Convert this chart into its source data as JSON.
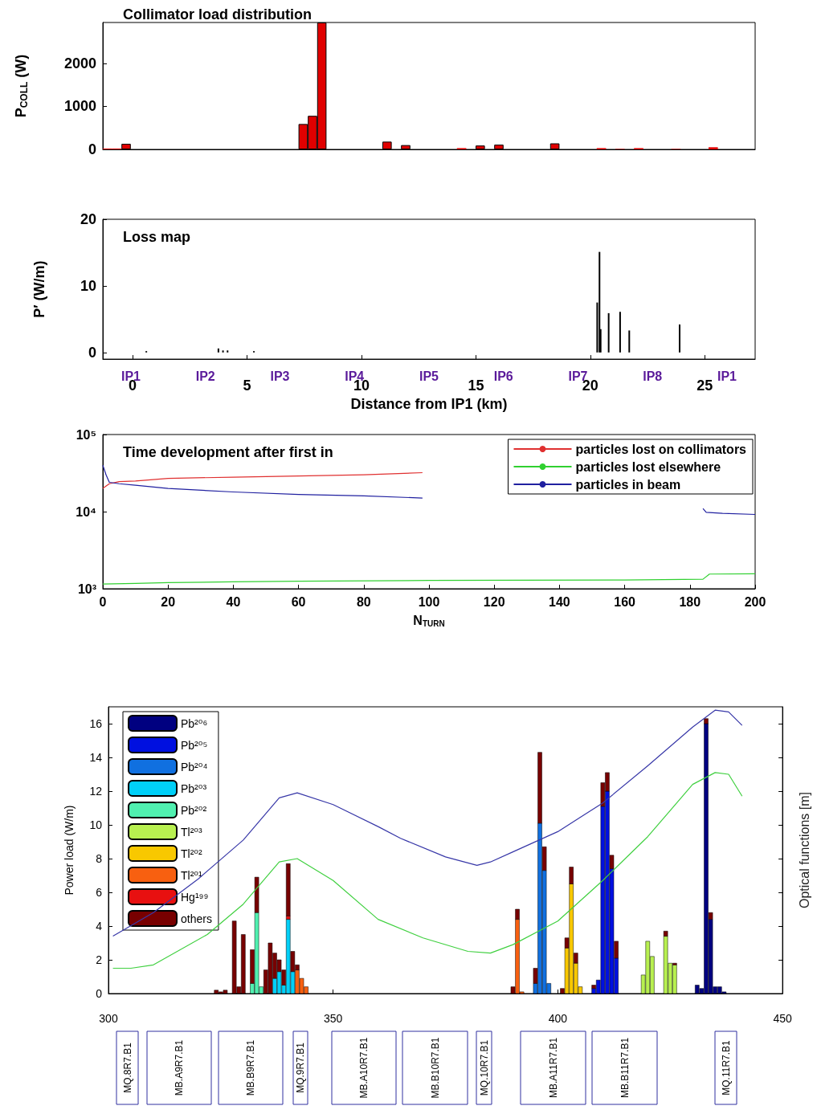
{
  "chart_data": [
    {
      "type": "bar",
      "title": "Collimator load distribution",
      "ylabel": "P$_{COLL}$ (W)",
      "categories": [
        null,
        null,
        null,
        null,
        null,
        null,
        null,
        null,
        null,
        null,
        null,
        null,
        null,
        null,
        null,
        null,
        null,
        null,
        null,
        null,
        null,
        null,
        null,
        null,
        null,
        null,
        null,
        null,
        null,
        null,
        null,
        null,
        null,
        null,
        null,
        null,
        null,
        null,
        null,
        null,
        null,
        null,
        null,
        null,
        null,
        null,
        null,
        null,
        null,
        null,
        null,
        null,
        null,
        null,
        null,
        null,
        null,
        null,
        null,
        null,
        null,
        null,
        null,
        null,
        null,
        null,
        null,
        null,
        null,
        null
      ],
      "values": [
        20,
        20,
        130,
        null,
        null,
        null,
        null,
        null,
        null,
        null,
        null,
        null,
        null,
        null,
        null,
        null,
        null,
        null,
        null,
        null,
        null,
        590,
        780,
        2950,
        null,
        null,
        null,
        null,
        null,
        null,
        180,
        null,
        100,
        null,
        null,
        null,
        null,
        null,
        30,
        null,
        90,
        null,
        110,
        null,
        null,
        null,
        null,
        null,
        140,
        null,
        null,
        null,
        null,
        30,
        null,
        10,
        null,
        30,
        null,
        null,
        null,
        10,
        null,
        null,
        null,
        50,
        null,
        null,
        null,
        null
      ],
      "color": "#e00000",
      "ylim": [
        0,
        2950
      ],
      "yticks": [
        0,
        1000,
        2000
      ]
    },
    {
      "type": "bar",
      "title": "Loss map",
      "ylabel": "P′ (W/m)",
      "xlabel": "Distance from IP1 (km)",
      "x": [
        0.6,
        3.75,
        3.95,
        4.15,
        5.3,
        20.3,
        20.4,
        20.45,
        20.8,
        21.3,
        21.7,
        23.9
      ],
      "values": [
        0.2,
        0.6,
        0.3,
        0.3,
        0.2,
        7.5,
        15.1,
        3.5,
        5.9,
        6.1,
        3.3,
        4.2
      ],
      "color": "#000000",
      "xlim": [
        -1.3,
        27.2
      ],
      "xticks": [
        0,
        5,
        10,
        15,
        20,
        25
      ],
      "ylim": [
        -1,
        20
      ],
      "yticks": [
        0,
        10,
        20
      ],
      "annotations": [
        "IP1",
        "IP2",
        "IP3",
        "IP4",
        "IP5",
        "IP6",
        "IP7",
        "IP8",
        "IP1"
      ]
    },
    {
      "type": "line",
      "title": "Time development after first in",
      "xlabel": "N$_{TURN}$",
      "log": "y",
      "legend": "top right",
      "xlim": [
        0,
        200
      ],
      "xticks": [
        0,
        20,
        40,
        60,
        80,
        100,
        120,
        140,
        160,
        180,
        200
      ],
      "ylim": [
        1000,
        100000
      ],
      "yticks": [
        {
          "value": 1000,
          "label": "10³"
        },
        {
          "value": 10000,
          "label": "10⁴"
        },
        {
          "value": 100000,
          "label": "10⁵"
        }
      ],
      "series": [
        {
          "name": "particles lost on collimators",
          "color": "#e03030",
          "x": [
            0,
            2,
            5,
            10,
            20,
            40,
            60,
            80,
            98
          ],
          "values": [
            20000,
            23000,
            24500,
            25000,
            27000,
            28000,
            29000,
            30000,
            32000
          ]
        },
        {
          "name": "particles lost elsewhere",
          "color": "#30d030",
          "x": [
            0,
            10,
            20,
            40,
            60,
            100,
            160,
            184,
            186,
            200
          ],
          "values": [
            1150,
            1170,
            1200,
            1230,
            1250,
            1280,
            1300,
            1330,
            1550,
            1560
          ]
        },
        {
          "name": "particles in beam",
          "color": "#2020a0",
          "x": [
            0,
            1,
            2,
            5,
            10,
            20,
            40,
            60,
            80,
            98,
            150,
            184,
            185,
            190,
            200
          ],
          "values": [
            40000,
            30000,
            24000,
            23000,
            22000,
            20000,
            18000,
            16700,
            16000,
            15000,
            null,
            11000,
            9800,
            9500,
            9200
          ]
        }
      ]
    },
    {
      "type": "bar",
      "stacked": true,
      "ylabel": "Power load (W/m)",
      "y2label": "Optical functions [m]",
      "legend": "top left",
      "xlim": [
        300,
        450
      ],
      "xticks": [
        300,
        350,
        400,
        450
      ],
      "ylim": [
        0,
        17
      ],
      "yticks": [
        0,
        2,
        4,
        6,
        8,
        10,
        12,
        14,
        16
      ],
      "x": [
        324,
        325,
        326,
        328,
        329,
        330,
        332,
        333,
        334,
        335,
        336,
        337,
        338,
        339,
        340,
        341,
        342,
        343,
        344,
        390,
        391,
        392,
        395,
        396,
        397,
        398,
        401,
        402,
        403,
        404,
        405,
        408,
        409,
        410,
        411,
        412,
        413,
        419,
        420,
        421,
        424,
        425,
        426,
        431,
        432,
        433,
        434,
        435,
        436,
        437
      ],
      "series": [
        {
          "name": "Pb²⁰⁶",
          "color": "#000080",
          "values": [
            null,
            null,
            null,
            null,
            null,
            null,
            null,
            null,
            null,
            null,
            null,
            null,
            null,
            null,
            null,
            null,
            null,
            null,
            null,
            null,
            null,
            null,
            null,
            null,
            null,
            null,
            null,
            null,
            null,
            null,
            null,
            null,
            null,
            null,
            null,
            null,
            null,
            null,
            null,
            null,
            null,
            null,
            null,
            0.5,
            0.3,
            16.0,
            4.4,
            0.4,
            0.4,
            0.1
          ]
        },
        {
          "name": "Pb²⁰⁵",
          "color": "#0010e0",
          "values": [
            null,
            null,
            null,
            null,
            null,
            null,
            null,
            null,
            null,
            null,
            null,
            null,
            null,
            null,
            null,
            null,
            null,
            null,
            null,
            null,
            null,
            null,
            null,
            null,
            null,
            null,
            null,
            null,
            null,
            null,
            null,
            0.3,
            0.8,
            11.1,
            12.0,
            7.4,
            2.1,
            null,
            null,
            null,
            null,
            null,
            null,
            null,
            null,
            null,
            null,
            null,
            null,
            null
          ]
        },
        {
          "name": "Pb²⁰⁴",
          "color": "#1070e0",
          "values": [
            null,
            null,
            null,
            null,
            null,
            null,
            null,
            null,
            null,
            null,
            null,
            null,
            null,
            null,
            null,
            null,
            null,
            null,
            null,
            null,
            null,
            null,
            0.6,
            10.1,
            7.3,
            0.6,
            null,
            null,
            null,
            null,
            null,
            null,
            null,
            null,
            null,
            null,
            null,
            null,
            null,
            null,
            null,
            null,
            null,
            null,
            null,
            null,
            null,
            null,
            null,
            null
          ]
        },
        {
          "name": "Pb²⁰³",
          "color": "#00d0f8",
          "values": [
            null,
            null,
            null,
            null,
            null,
            null,
            null,
            null,
            null,
            null,
            null,
            0.9,
            1.3,
            0.5,
            4.4,
            1.3,
            null,
            null,
            null,
            null,
            null,
            null,
            null,
            null,
            null,
            null,
            null,
            null,
            null,
            null,
            null,
            null,
            null,
            null,
            null,
            null,
            null,
            null,
            null,
            null,
            null,
            null,
            null,
            null,
            null,
            null,
            null,
            null,
            null,
            null
          ]
        },
        {
          "name": "Pb²⁰²",
          "color": "#50f0b0",
          "values": [
            null,
            null,
            null,
            null,
            null,
            null,
            0.6,
            4.8,
            0.4,
            null,
            null,
            null,
            null,
            null,
            null,
            null,
            null,
            null,
            null,
            null,
            null,
            null,
            null,
            null,
            null,
            null,
            null,
            null,
            null,
            null,
            null,
            null,
            null,
            null,
            null,
            null,
            null,
            null,
            null,
            null,
            null,
            null,
            null,
            null,
            null,
            null,
            null,
            null,
            null,
            null
          ]
        },
        {
          "name": "Tl²⁰³",
          "color": "#b8f050",
          "values": [
            null,
            null,
            null,
            null,
            null,
            null,
            null,
            null,
            null,
            null,
            null,
            null,
            null,
            null,
            null,
            null,
            null,
            null,
            null,
            null,
            null,
            null,
            null,
            null,
            null,
            null,
            null,
            null,
            null,
            null,
            null,
            null,
            null,
            null,
            null,
            null,
            null,
            1.1,
            3.1,
            2.2,
            3.4,
            1.8,
            1.7,
            null,
            null,
            null,
            null,
            null,
            null,
            null
          ]
        },
        {
          "name": "Tl²⁰²",
          "color": "#f8c800",
          "values": [
            null,
            null,
            null,
            null,
            null,
            null,
            null,
            null,
            null,
            null,
            null,
            null,
            null,
            null,
            null,
            null,
            null,
            null,
            null,
            null,
            null,
            null,
            null,
            null,
            null,
            null,
            null,
            2.7,
            6.5,
            1.8,
            0.4,
            null,
            null,
            null,
            null,
            null,
            null,
            null,
            null,
            null,
            null,
            null,
            null,
            null,
            null,
            null,
            null,
            null,
            null,
            null
          ]
        },
        {
          "name": "Tl²⁰¹",
          "color": "#f86010",
          "values": [
            null,
            null,
            null,
            null,
            null,
            null,
            null,
            null,
            null,
            null,
            null,
            null,
            null,
            null,
            null,
            null,
            1.4,
            0.9,
            0.4,
            null,
            4.4,
            0.1,
            null,
            null,
            null,
            null,
            null,
            null,
            null,
            null,
            null,
            null,
            null,
            null,
            null,
            null,
            null,
            null,
            null,
            null,
            null,
            null,
            null,
            null,
            null,
            null,
            null,
            null,
            null,
            null
          ]
        },
        {
          "name": "Hg¹⁹⁹",
          "color": "#e81010",
          "values": [
            null,
            null,
            null,
            null,
            null,
            null,
            null,
            null,
            null,
            null,
            null,
            null,
            null,
            null,
            0.2,
            null,
            null,
            null,
            null,
            null,
            null,
            null,
            null,
            null,
            null,
            null,
            null,
            null,
            null,
            null,
            null,
            null,
            null,
            null,
            null,
            null,
            null,
            null,
            null,
            null,
            null,
            null,
            null,
            null,
            null,
            null,
            null,
            null,
            null,
            null
          ]
        },
        {
          "name": "others",
          "color": "#780000",
          "values": [
            0.2,
            0.1,
            0.2,
            4.3,
            0.4,
            3.5,
            2.0,
            2.1,
            null,
            1.4,
            3.0,
            1.5,
            0.7,
            0.9,
            3.1,
            1.2,
            0.3,
            null,
            null,
            0.4,
            0.6,
            null,
            0.9,
            4.2,
            1.4,
            null,
            0.3,
            0.6,
            1.0,
            0.6,
            null,
            0.2,
            null,
            1.4,
            1.1,
            0.8,
            1.0,
            null,
            null,
            null,
            0.3,
            null,
            0.1,
            null,
            null,
            0.3,
            0.4,
            null,
            null,
            null
          ]
        },
        {
          "type": "line",
          "color": "#3838a8",
          "x": [
            301,
            310,
            320,
            330,
            338,
            342,
            350,
            360,
            365,
            375,
            382,
            385,
            390,
            400,
            410,
            420,
            430,
            435,
            438,
            441
          ],
          "values": [
            3.4,
            4.8,
            6.8,
            9.1,
            11.6,
            11.9,
            11.2,
            9.9,
            9.2,
            8.1,
            7.6,
            7.8,
            8.4,
            9.6,
            11.3,
            13.5,
            15.8,
            16.8,
            16.7,
            15.9
          ]
        },
        {
          "type": "line",
          "color": "#40d040",
          "x": [
            301,
            305,
            310,
            322,
            330,
            338,
            342,
            350,
            360,
            370,
            380,
            385,
            390,
            400,
            410,
            420,
            430,
            435,
            438,
            441
          ],
          "values": [
            1.5,
            1.5,
            1.7,
            3.5,
            5.3,
            7.8,
            8.0,
            6.7,
            4.4,
            3.3,
            2.5,
            2.4,
            2.9,
            4.3,
            6.7,
            9.3,
            12.4,
            13.1,
            13.0,
            11.7
          ]
        }
      ],
      "annotations": [
        "MQ.8R7.B1",
        "MB.A9R7.B1",
        "MB.B9R7.B1",
        "MQ.9R7.B1",
        "MB.A10R7.B1",
        "MB.B10R7.B1",
        "MQ.10R7.B1",
        "MB.A11R7.B1",
        "MB.B11R7.B1",
        "MQ.11R7.B1"
      ]
    }
  ]
}
